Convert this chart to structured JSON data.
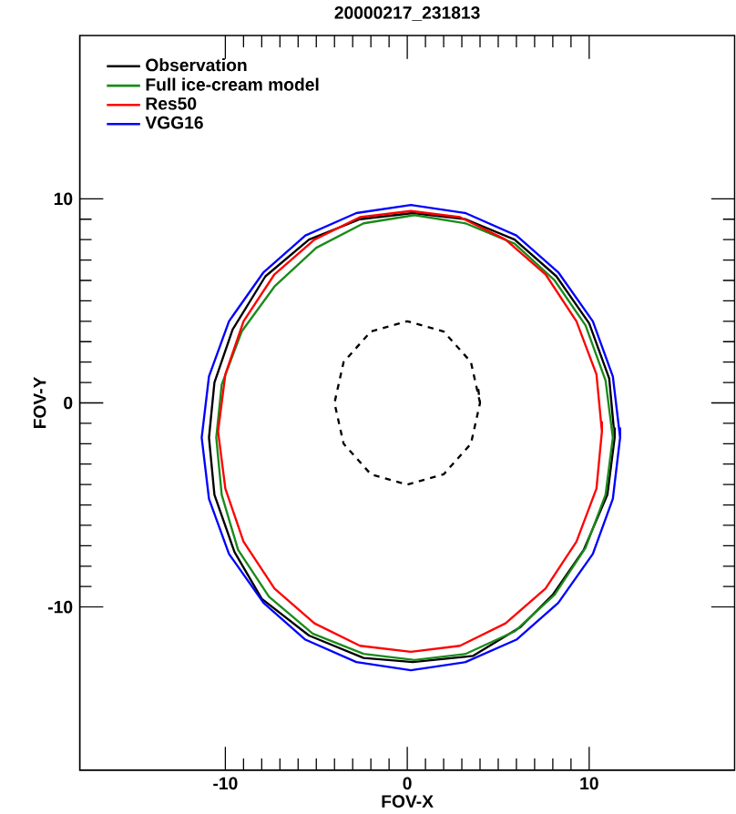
{
  "chart_data": {
    "type": "line",
    "title": "20000217_231813",
    "xlabel": "FOV-X",
    "ylabel": "FOV-Y",
    "xlim": [
      -18,
      18
    ],
    "ylim": [
      -18,
      18
    ],
    "xticks": [
      -10,
      0,
      10
    ],
    "yticks": [
      -10,
      0,
      10
    ],
    "legend": "top left",
    "line_style": "solid",
    "series": [
      {
        "name": "Observation",
        "color": "#000000",
        "x": [
          11.4,
          11.1,
          10.0,
          8.2,
          5.9,
          3.2,
          0.3,
          -2.6,
          -5.4,
          -7.8,
          -9.6,
          -10.6,
          -10.9,
          -10.6,
          -9.5,
          -8.0,
          -5.4,
          -2.4,
          0.3,
          3.6,
          6.2,
          8.0,
          9.7,
          11.0,
          11.4,
          11.4
        ],
        "values": [
          -1.7,
          1.2,
          3.9,
          6.2,
          8.0,
          9.0,
          9.3,
          9.0,
          8.0,
          6.2,
          3.6,
          1.0,
          -1.7,
          -4.5,
          -7.3,
          -9.6,
          -11.4,
          -12.5,
          -12.7,
          -12.4,
          -11.0,
          -9.4,
          -7.2,
          -4.5,
          -1.7,
          -1.2
        ]
      },
      {
        "name": "Full ice-cream model",
        "color": "#1a8a1a",
        "x": [
          11.3,
          10.9,
          9.8,
          8.1,
          5.9,
          3.2,
          0.4,
          -2.4,
          -5.0,
          -7.3,
          -9.1,
          -10.2,
          -10.5,
          -10.2,
          -9.3,
          -7.6,
          -5.2,
          -2.4,
          0.4,
          3.2,
          5.9,
          8.1,
          9.8,
          10.9,
          11.3,
          11.3
        ],
        "values": [
          -1.7,
          1.1,
          3.8,
          6.0,
          7.8,
          8.8,
          9.2,
          8.8,
          7.6,
          5.7,
          3.5,
          0.9,
          -1.7,
          -4.5,
          -7.2,
          -9.5,
          -11.3,
          -12.3,
          -12.6,
          -12.3,
          -11.2,
          -9.4,
          -7.1,
          -4.5,
          -1.7,
          -1.2
        ]
      },
      {
        "name": "Res50",
        "color": "#ff0000",
        "x": [
          10.7,
          10.4,
          9.3,
          7.6,
          5.4,
          2.9,
          0.2,
          -2.6,
          -5.1,
          -7.3,
          -9.0,
          -10.0,
          -10.4,
          -10.0,
          -9.0,
          -7.3,
          -5.1,
          -2.6,
          0.2,
          2.9,
          5.4,
          7.6,
          9.3,
          10.4,
          10.7,
          10.7
        ],
        "values": [
          -1.4,
          1.4,
          4.0,
          6.3,
          8.0,
          9.1,
          9.4,
          9.1,
          8.0,
          6.3,
          4.0,
          1.4,
          -1.4,
          -4.2,
          -6.8,
          -9.1,
          -10.8,
          -11.9,
          -12.2,
          -11.9,
          -10.8,
          -9.1,
          -6.8,
          -4.2,
          -1.4,
          -0.9
        ]
      },
      {
        "name": "VGG16",
        "color": "#0000ff",
        "x": [
          11.7,
          11.3,
          10.2,
          8.3,
          6.0,
          3.2,
          0.2,
          -2.8,
          -5.6,
          -7.9,
          -9.8,
          -10.9,
          -11.3,
          -10.9,
          -9.8,
          -7.9,
          -5.6,
          -2.8,
          0.2,
          3.2,
          6.0,
          8.3,
          10.2,
          11.3,
          11.7,
          11.7
        ],
        "values": [
          -1.7,
          1.3,
          4.0,
          6.4,
          8.2,
          9.3,
          9.7,
          9.3,
          8.2,
          6.4,
          4.0,
          1.3,
          -1.7,
          -4.7,
          -7.4,
          -9.8,
          -11.6,
          -12.7,
          -13.1,
          -12.7,
          -11.6,
          -9.8,
          -7.4,
          -4.7,
          -1.7,
          -1.2
        ]
      },
      {
        "type": "line",
        "line_style": "dashed",
        "color": "#000000",
        "x": [
          4.0,
          3.5,
          2.0,
          0.0,
          -2.0,
          -3.5,
          -4.0,
          -3.5,
          -2.0,
          0.0,
          2.0,
          3.5,
          4.0,
          3.9
        ],
        "values": [
          0.0,
          2.0,
          3.5,
          4.0,
          3.5,
          2.0,
          0.0,
          -2.0,
          -3.5,
          -4.0,
          -3.5,
          -2.0,
          0.0,
          0.7
        ]
      }
    ]
  }
}
